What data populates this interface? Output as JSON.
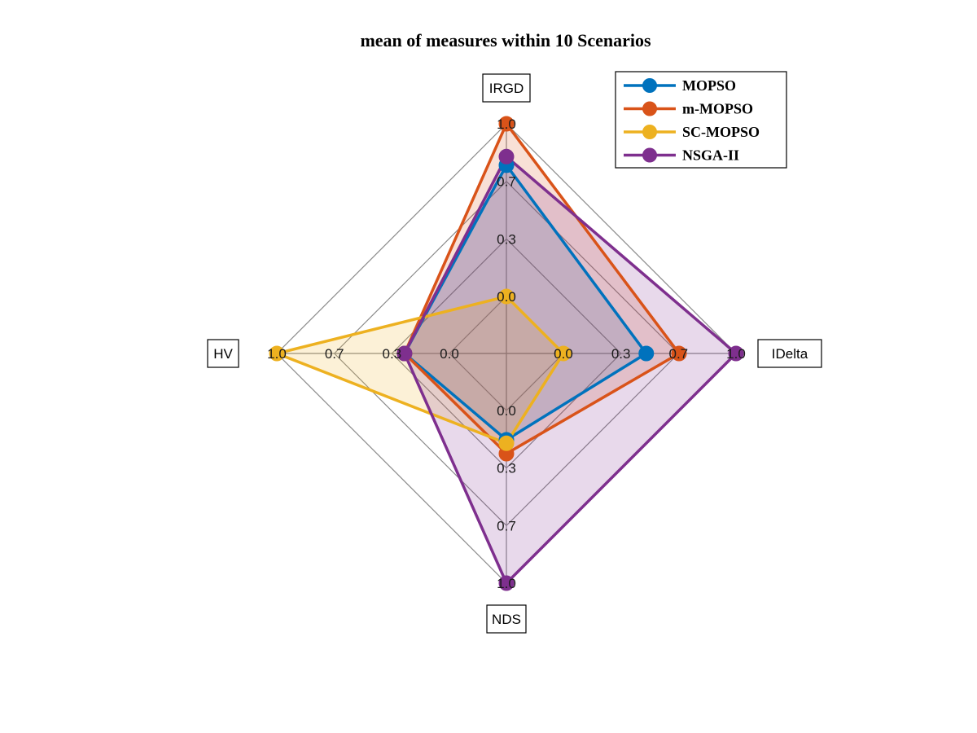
{
  "chart_data": {
    "type": "radar",
    "title": "mean of measures within 10 Scenarios",
    "axes": [
      "IRGD",
      "IDelta",
      "NDS",
      "HV"
    ],
    "tick_labels": [
      "0.0",
      "0.3",
      "0.7",
      "1.0"
    ],
    "rlim": [
      0,
      1
    ],
    "legend_position": "top-right",
    "series": [
      {
        "name": "MOPSO",
        "color": "#0072BD",
        "values": [
          0.76,
          0.48,
          0.17,
          0.26
        ]
      },
      {
        "name": "m-MOPSO",
        "color": "#D95319",
        "values": [
          1.0,
          0.67,
          0.25,
          0.26
        ]
      },
      {
        "name": "SC-MOPSO",
        "color": "#EDB120",
        "values": [
          0.0,
          0.0,
          0.19,
          1.0
        ]
      },
      {
        "name": "NSGA-II",
        "color": "#7E2F8E",
        "values": [
          0.81,
          1.0,
          1.0,
          0.26
        ]
      }
    ]
  }
}
